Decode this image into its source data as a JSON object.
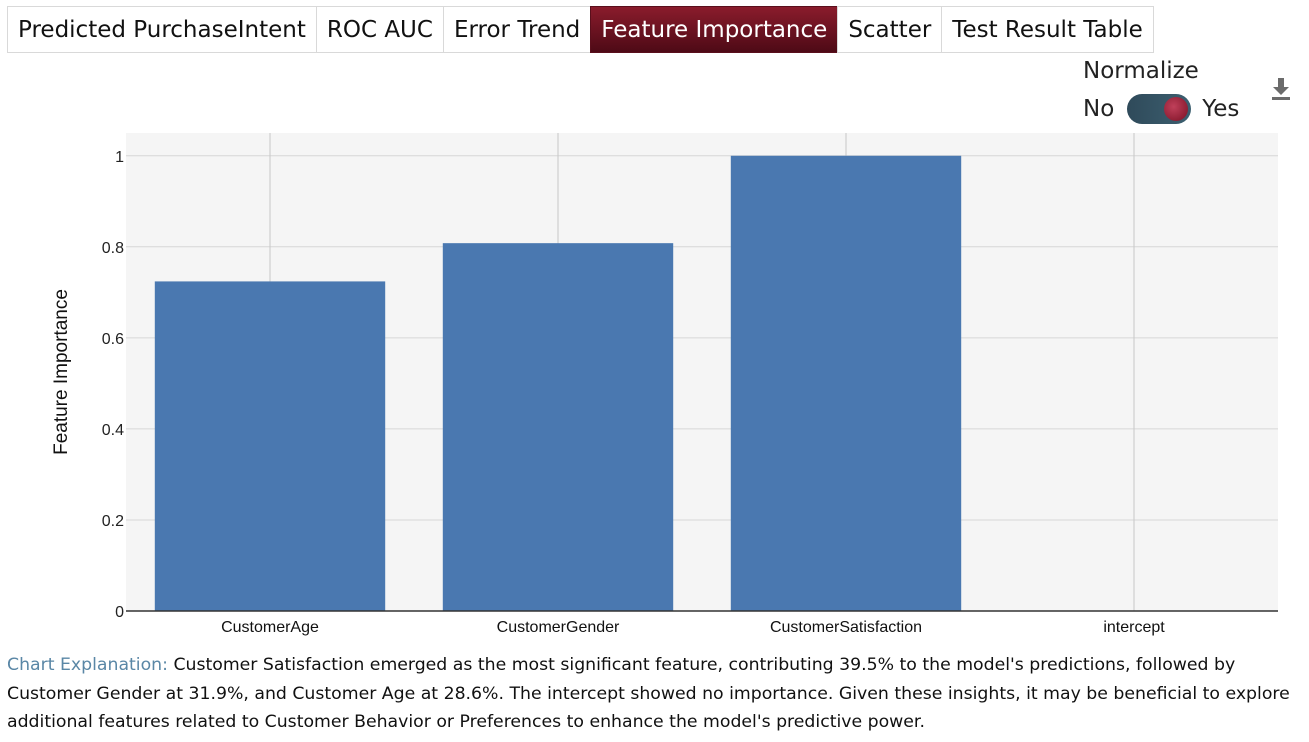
{
  "tabs": [
    {
      "label": "Predicted PurchaseIntent",
      "active": false
    },
    {
      "label": "ROC AUC",
      "active": false
    },
    {
      "label": "Error Trend",
      "active": false
    },
    {
      "label": "Feature Importance",
      "active": true
    },
    {
      "label": "Scatter",
      "active": false
    },
    {
      "label": "Test Result Table",
      "active": false
    }
  ],
  "normalize": {
    "label": "Normalize",
    "off_label": "No",
    "on_label": "Yes",
    "value": true
  },
  "icons": {
    "download": "download-icon"
  },
  "chart_data": {
    "type": "bar",
    "categories": [
      "CustomerAge",
      "CustomerGender",
      "CustomerSatisfaction",
      "intercept"
    ],
    "values": [
      0.724,
      0.808,
      1.0,
      0
    ],
    "ylabel": "Feature Importance",
    "ylim": [
      0,
      1.05
    ],
    "yticks": [
      0,
      0.2,
      0.4,
      0.6,
      0.8,
      1
    ],
    "ytick_labels": [
      "0",
      "0.2",
      "0.4",
      "0.6",
      "0.8",
      "1"
    ],
    "grid": true,
    "bar_color": "#4a78b0",
    "plot_background": "#f5f5f5"
  },
  "explanation": {
    "label": "Chart Explanation:",
    "text": " Customer Satisfaction emerged as the most significant feature, contributing 39.5% to the model's predictions, followed by Customer Gender at 31.9%, and Customer Age at 28.6%. The intercept showed no importance. Given these insights, it may be beneficial to explore additional features related to Customer Behavior or Preferences to enhance the model's predictive power."
  }
}
